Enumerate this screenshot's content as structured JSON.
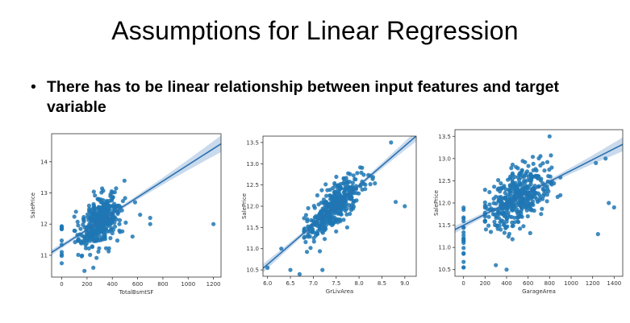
{
  "slide": {
    "title": "Assumptions for Linear Regression",
    "bullet": "There has to be linear relationship between input features and target variable"
  },
  "colors": {
    "points": "#1f77b4",
    "line": "#2b70b0",
    "band": "#b7cde6",
    "frame": "#333333"
  },
  "chart_data": [
    {
      "type": "scatter",
      "xlabel": "TotalBsmtSF",
      "ylabel": "SalePrice",
      "xlim": [
        -80,
        1260
      ],
      "ylim": [
        10.3,
        14.9
      ],
      "xticks": [
        0,
        200,
        400,
        600,
        800,
        1000,
        1200
      ],
      "yticks": [
        11,
        12,
        13,
        14
      ],
      "regression": {
        "intercept": 11.3,
        "slope": 0.0026
      },
      "cluster": {
        "x_min": 100,
        "x_max": 560,
        "x_center": 300,
        "x_spread": 75,
        "y_spread": 0.38,
        "count": 420
      },
      "zero_column": {
        "x": 0,
        "y_min": 10.6,
        "y_max": 12.2,
        "count": 12
      },
      "outliers": [
        [
          1200,
          12.0
        ],
        [
          700,
          12.0
        ],
        [
          700,
          12.2
        ],
        [
          580,
          12.7
        ],
        [
          560,
          11.6
        ],
        [
          620,
          12.3
        ],
        [
          180,
          10.5
        ],
        [
          250,
          10.6
        ]
      ]
    },
    {
      "type": "scatter",
      "xlabel": "GrLivArea",
      "ylabel": "SalePrice",
      "xlim": [
        5.9,
        9.25
      ],
      "ylim": [
        10.35,
        13.65
      ],
      "xticks": [
        6.0,
        6.5,
        7.0,
        7.5,
        8.0,
        8.5,
        9.0
      ],
      "yticks": [
        10.5,
        11.0,
        11.5,
        12.0,
        12.5,
        13.0,
        13.5
      ],
      "regression": {
        "intercept": 5.05,
        "slope": 0.93
      },
      "cluster": {
        "x_min": 6.8,
        "x_max": 8.6,
        "x_center": 7.45,
        "x_spread": 0.3,
        "y_spread": 0.22,
        "count": 420
      },
      "outliers": [
        [
          6.0,
          10.55
        ],
        [
          6.3,
          11.0
        ],
        [
          6.5,
          10.5
        ],
        [
          8.8,
          12.1
        ],
        [
          9.0,
          12.0
        ],
        [
          8.7,
          13.5
        ],
        [
          6.7,
          10.4
        ],
        [
          7.2,
          10.5
        ]
      ]
    },
    {
      "type": "scatter",
      "xlabel": "GarageArea",
      "ylabel": "SalePrice",
      "xlim": [
        -80,
        1480
      ],
      "ylim": [
        10.35,
        13.65
      ],
      "xticks": [
        0,
        200,
        400,
        600,
        800,
        1000,
        1200,
        1400
      ],
      "yticks": [
        10.5,
        11.0,
        11.5,
        12.0,
        12.5,
        13.0,
        13.5
      ],
      "regression": {
        "intercept": 11.5,
        "slope": 0.00123
      },
      "cluster": {
        "x_min": 200,
        "x_max": 900,
        "x_center": 500,
        "x_spread": 150,
        "y_spread": 0.3,
        "count": 420
      },
      "zero_column": {
        "x": 0,
        "y_min": 10.5,
        "y_max": 12.0,
        "count": 20
      },
      "outliers": [
        [
          1350,
          12.0
        ],
        [
          1400,
          11.9
        ],
        [
          1250,
          11.3
        ],
        [
          1230,
          12.9
        ],
        [
          1320,
          13.0
        ],
        [
          800,
          13.5
        ],
        [
          400,
          10.5
        ],
        [
          300,
          10.6
        ]
      ]
    }
  ]
}
